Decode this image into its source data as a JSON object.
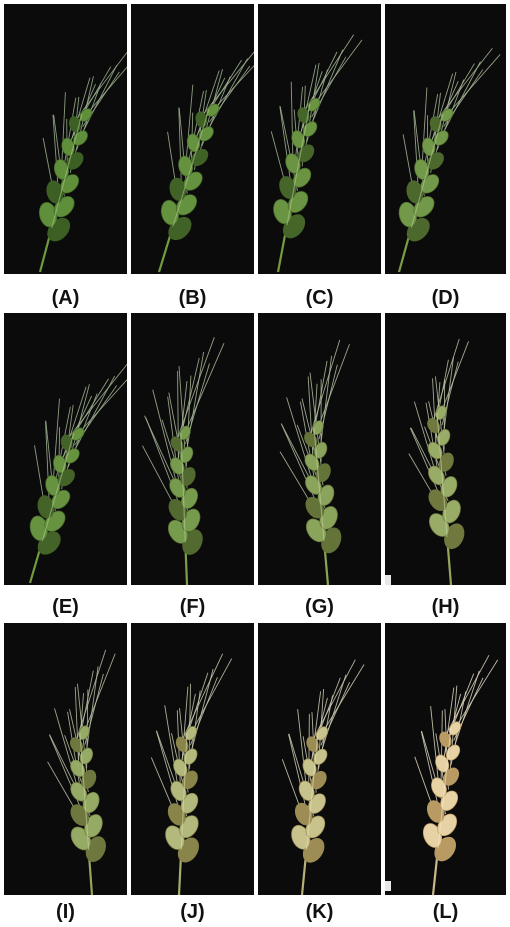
{
  "figure": {
    "panels": [
      {
        "id": "A",
        "label": "(A)",
        "maturity": 0.0
      },
      {
        "id": "B",
        "label": "(B)",
        "maturity": 0.04
      },
      {
        "id": "C",
        "label": "(C)",
        "maturity": 0.08
      },
      {
        "id": "D",
        "label": "(D)",
        "maturity": 0.14
      },
      {
        "id": "E",
        "label": "(E)",
        "maturity": 0.06
      },
      {
        "id": "F",
        "label": "(F)",
        "maturity": 0.18
      },
      {
        "id": "G",
        "label": "(G)",
        "maturity": 0.32
      },
      {
        "id": "H",
        "label": "(H)",
        "maturity": 0.42
      },
      {
        "id": "I",
        "label": "(I)",
        "maturity": 0.4
      },
      {
        "id": "J",
        "label": "(J)",
        "maturity": 0.62
      },
      {
        "id": "K",
        "label": "(K)",
        "maturity": 0.78
      },
      {
        "id": "L",
        "label": "(L)",
        "maturity": 1.0
      }
    ],
    "colors": {
      "background": "#0b0b0b",
      "green_spike": "#5f8f3a",
      "green_awn": "#9fb592",
      "mature_spike": "#e6d2a4",
      "mature_awn": "#e2d9c2"
    }
  }
}
